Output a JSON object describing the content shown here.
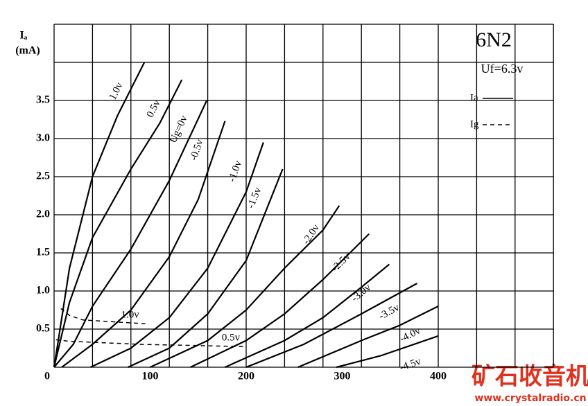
{
  "chart_data": {
    "type": "line",
    "title": "6N2",
    "subtitle": "Uf=6.3v",
    "y_label": "Iₐ",
    "y_unit": "(mA)",
    "xlim": [
      0,
      520
    ],
    "ylim": [
      0,
      4.5
    ],
    "xticks": [
      0,
      100,
      200,
      300,
      400
    ],
    "yticks": [
      0.5,
      {
        "value": 1,
        "label": "1.0"
      },
      1.5,
      {
        "value": 2,
        "label": "2.0"
      },
      2.5,
      {
        "value": 3,
        "label": "3.0"
      },
      3.5
    ],
    "x_grid": [
      0,
      40,
      80,
      120,
      160,
      200,
      240,
      280,
      320,
      360,
      400,
      440,
      480,
      520
    ],
    "y_grid": [
      0,
      0.5,
      1,
      1.5,
      2,
      2.5,
      3,
      3.5,
      4,
      4.5
    ],
    "grid": true,
    "legend": [
      {
        "label": "Ia",
        "dashed": false
      },
      {
        "label": "Ig",
        "dashed": true
      }
    ],
    "series": [
      {
        "name": "1.0v",
        "color": "#000000",
        "dashed": false,
        "x": [
          0,
          5,
          16,
          40,
          66,
          94
        ],
        "values": [
          0,
          0.4,
          1.3,
          2.5,
          3.3,
          4.0
        ]
      },
      {
        "name": "0.5v",
        "color": "#000000",
        "dashed": false,
        "x": [
          0,
          16,
          40,
          80,
          110,
          133
        ],
        "values": [
          0,
          0.85,
          1.7,
          2.6,
          3.2,
          3.77
        ]
      },
      {
        "name": "Ug=0v",
        "color": "#000000",
        "dashed": false,
        "x": [
          0,
          20,
          40,
          80,
          120,
          159
        ],
        "values": [
          0,
          0.3,
          0.8,
          1.55,
          2.45,
          3.5
        ]
      },
      {
        "name": "-0.5v",
        "color": "#000000",
        "dashed": false,
        "x": [
          8,
          40,
          80,
          120,
          150,
          178
        ],
        "values": [
          0,
          0.3,
          0.75,
          1.45,
          2.2,
          3.23
        ]
      },
      {
        "name": "-1.0v",
        "color": "#000000",
        "dashed": false,
        "x": [
          38,
          80,
          120,
          160,
          200,
          218
        ],
        "values": [
          0,
          0.25,
          0.65,
          1.3,
          2.3,
          2.95
        ]
      },
      {
        "name": "-1.5v",
        "color": "#000000",
        "dashed": false,
        "x": [
          77,
          120,
          160,
          200,
          238
        ],
        "values": [
          0,
          0.25,
          0.7,
          1.4,
          2.6
        ]
      },
      {
        "name": "-2.0v",
        "color": "#000000",
        "dashed": false,
        "x": [
          100,
          160,
          200,
          240,
          280,
          297
        ],
        "values": [
          0,
          0.35,
          0.75,
          1.3,
          1.8,
          2.12
        ]
      },
      {
        "name": "-2.5v",
        "color": "#000000",
        "dashed": false,
        "x": [
          142,
          200,
          240,
          280,
          328
        ],
        "values": [
          0,
          0.35,
          0.7,
          1.15,
          1.75
        ]
      },
      {
        "name": "-3.0v",
        "color": "#000000",
        "dashed": false,
        "x": [
          178,
          240,
          280,
          320,
          349
        ],
        "values": [
          0,
          0.35,
          0.65,
          1.05,
          1.35
        ]
      },
      {
        "name": "-3.5v",
        "color": "#000000",
        "dashed": false,
        "x": [
          200,
          260,
          320,
          378
        ],
        "values": [
          0,
          0.3,
          0.7,
          1.1
        ]
      },
      {
        "name": "-4.0v",
        "color": "#000000",
        "dashed": false,
        "x": [
          254,
          320,
          360,
          400
        ],
        "values": [
          0,
          0.35,
          0.55,
          0.8
        ]
      },
      {
        "name": "-4.5v",
        "color": "#000000",
        "dashed": false,
        "x": [
          294,
          340,
          400
        ],
        "values": [
          0,
          0.15,
          0.41
        ]
      },
      {
        "name": "1.0v",
        "color": "#000000",
        "dashed": true,
        "x": [
          7,
          16,
          30,
          95
        ],
        "values": [
          0.77,
          0.68,
          0.62,
          0.57
        ]
      },
      {
        "name": "0.5v",
        "color": "#000000",
        "dashed": true,
        "x": [
          2,
          16,
          90,
          200
        ],
        "values": [
          0.36,
          0.34,
          0.3,
          0.27
        ]
      }
    ],
    "watermark": {
      "text": "矿石收音机",
      "url": "www.crystalradio.cn"
    }
  }
}
